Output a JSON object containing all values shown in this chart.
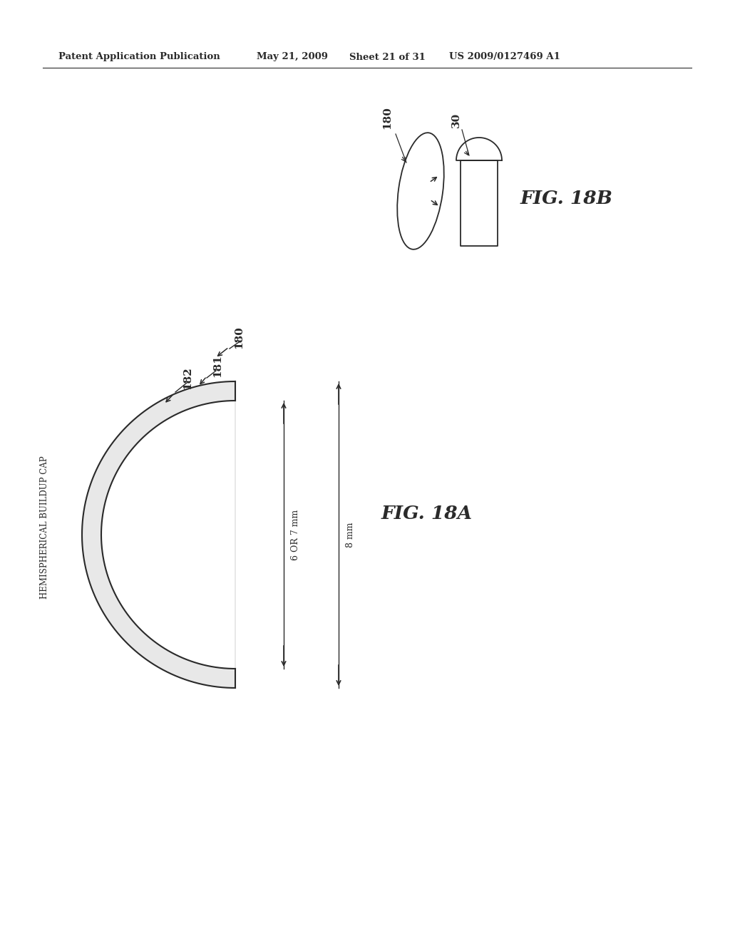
{
  "bg_color": "#ffffff",
  "header_text": "Patent Application Publication",
  "header_date": "May 21, 2009",
  "header_sheet": "Sheet 21 of 31",
  "header_patent": "US 2009/0127469 A1",
  "fig18a_label": "FIG. 18A",
  "fig18b_label": "FIG. 18B",
  "label_180_main": "180",
  "label_181": "181",
  "label_182": "182",
  "label_180_small": "180",
  "label_30": "30",
  "dim_label_6or7": "6 OR 7 mm",
  "dim_label_8mm": "8 mm",
  "side_label": "HEMISPHERICAL BUILDUP CAP",
  "line_color": "#2a2a2a",
  "text_color": "#2a2a2a"
}
